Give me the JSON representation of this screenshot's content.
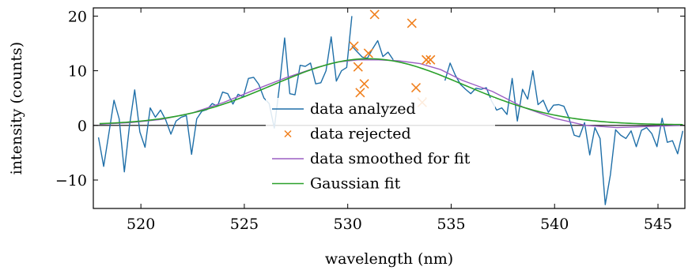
{
  "chart_data": {
    "type": "line",
    "title": "",
    "xlabel": "wavelength (nm)",
    "ylabel": "intensity (counts)",
    "xlim": [
      517.7,
      546.3
    ],
    "ylim": [
      -15.2,
      21.5
    ],
    "xticks": [
      520,
      525,
      530,
      535,
      540,
      545
    ],
    "yticks": [
      -10,
      0,
      10,
      20
    ],
    "grid": false,
    "zero_line": true,
    "legend_position": "center",
    "colors": {
      "data_analyzed": "#1f6fa8",
      "data_rejected": "#f0801e",
      "data_smoothed": "#9c5fc4",
      "gaussian_fit": "#2aa02a"
    },
    "series": [
      {
        "name": "data analyzed",
        "kind": "line",
        "segments": [
          {
            "x": [
              517.95,
              518.2,
              518.45,
              518.7,
              518.95,
              519.2,
              519.45,
              519.7,
              519.95,
              520.2,
              520.45,
              520.7,
              520.95,
              521.2,
              521.45,
              521.7,
              521.95,
              522.2,
              522.45,
              522.7,
              522.95,
              523.2,
              523.45,
              523.7,
              523.95,
              524.2,
              524.45,
              524.7,
              524.95,
              525.2,
              525.45,
              525.7,
              525.95,
              526.2,
              526.45,
              526.7,
              526.95,
              527.2,
              527.45,
              527.7,
              527.95,
              528.2,
              528.45,
              528.7,
              528.95,
              529.2,
              529.45,
              529.7,
              529.95,
              530.2
            ],
            "y": [
              -2.2,
              -7.5,
              -1.5,
              4.6,
              1.2,
              -8.5,
              0,
              6.5,
              -1.2,
              -4,
              3.2,
              1.5,
              2.8,
              1,
              -1.6,
              0.8,
              1.5,
              1.8,
              -5.3,
              1.2,
              2.6,
              2.9,
              4,
              3.5,
              6.1,
              5.8,
              3.9,
              5.7,
              5.2,
              8.6,
              8.8,
              7.5,
              5,
              4,
              -0.5,
              7.2,
              16,
              5.8,
              5.6,
              11,
              10.8,
              11.4,
              7.6,
              7.8,
              10,
              16.2,
              8.1,
              10,
              10.6,
              20
            ]
          },
          {
            "x": [
              530.2,
              530.45,
              530.7,
              530.95,
              531.2,
              531.45,
              531.7,
              531.95,
              532.2
            ],
            "y": [
              14.5,
              13.5,
              12.5,
              12.3,
              14,
              15.5,
              12.6,
              13.4,
              12
            ]
          },
          {
            "x": [
              534.7,
              534.95,
              535.2,
              535.45,
              535.7,
              535.95,
              536.2,
              536.45,
              536.7,
              536.95,
              537.2,
              537.45,
              537.7,
              537.95,
              538.2,
              538.45,
              538.7,
              538.95,
              539.2,
              539.45,
              539.7,
              539.95,
              540.2,
              540.45,
              540.7,
              540.95,
              541.2,
              541.45,
              541.7,
              541.95,
              542.2,
              542.45,
              542.7,
              542.95,
              543.2,
              543.45,
              543.7,
              543.95,
              544.2,
              544.45,
              544.7,
              544.95,
              545.2,
              545.45,
              545.7,
              545.95,
              546.2
            ],
            "y": [
              8.2,
              11.4,
              9.2,
              7.5,
              6.6,
              5.8,
              6.8,
              6.6,
              6.9,
              4.5,
              2.8,
              3.2,
              2,
              8.6,
              0.8,
              6.6,
              4.8,
              10,
              3.8,
              4.6,
              2.4,
              3.7,
              3.8,
              3.5,
              1.3,
              -1.8,
              -2.1,
              0.5,
              -5.4,
              -0.4,
              -2.4,
              -14.5,
              -9,
              -0.8,
              -1.8,
              -2.4,
              -1,
              -3.9,
              -0.9,
              -0.4,
              -1.5,
              -3.9,
              1.3,
              -3.1,
              -2.8,
              -5.2,
              -1
            ]
          }
        ]
      },
      {
        "name": "data rejected",
        "kind": "scatter",
        "x": [
          530.3,
          530.5,
          530.6,
          530.8,
          531.0,
          531.3,
          533.1,
          533.3,
          533.6,
          533.8,
          534.0
        ],
        "y": [
          14.5,
          10.7,
          6,
          7.6,
          13.2,
          20.3,
          18.7,
          6.9,
          4.2,
          12,
          12
        ]
      },
      {
        "name": "data smoothed for fit",
        "kind": "line",
        "x": [
          518.0,
          519.5,
          521.0,
          522.5,
          524.0,
          525.5,
          527.0,
          528.5,
          529.5,
          530.5,
          531.5,
          532.5,
          533.5,
          534.5,
          535.5,
          537.0,
          538.5,
          540.0,
          541.5,
          543.0,
          544.5,
          546.2
        ],
        "y": [
          0.2,
          0.5,
          1.1,
          2.3,
          4.2,
          6.5,
          8.7,
          10.6,
          11.6,
          12,
          12,
          11.8,
          11.3,
          10.2,
          8.3,
          6.2,
          3.3,
          1.3,
          0,
          -0.4,
          -0.2,
          0
        ]
      },
      {
        "name": "Gaussian fit",
        "kind": "gaussian",
        "amplitude": 12.1,
        "center": 531.0,
        "sigma": 4.6,
        "offset": 0.1,
        "x_range": [
          518.0,
          546.2
        ]
      }
    ]
  }
}
